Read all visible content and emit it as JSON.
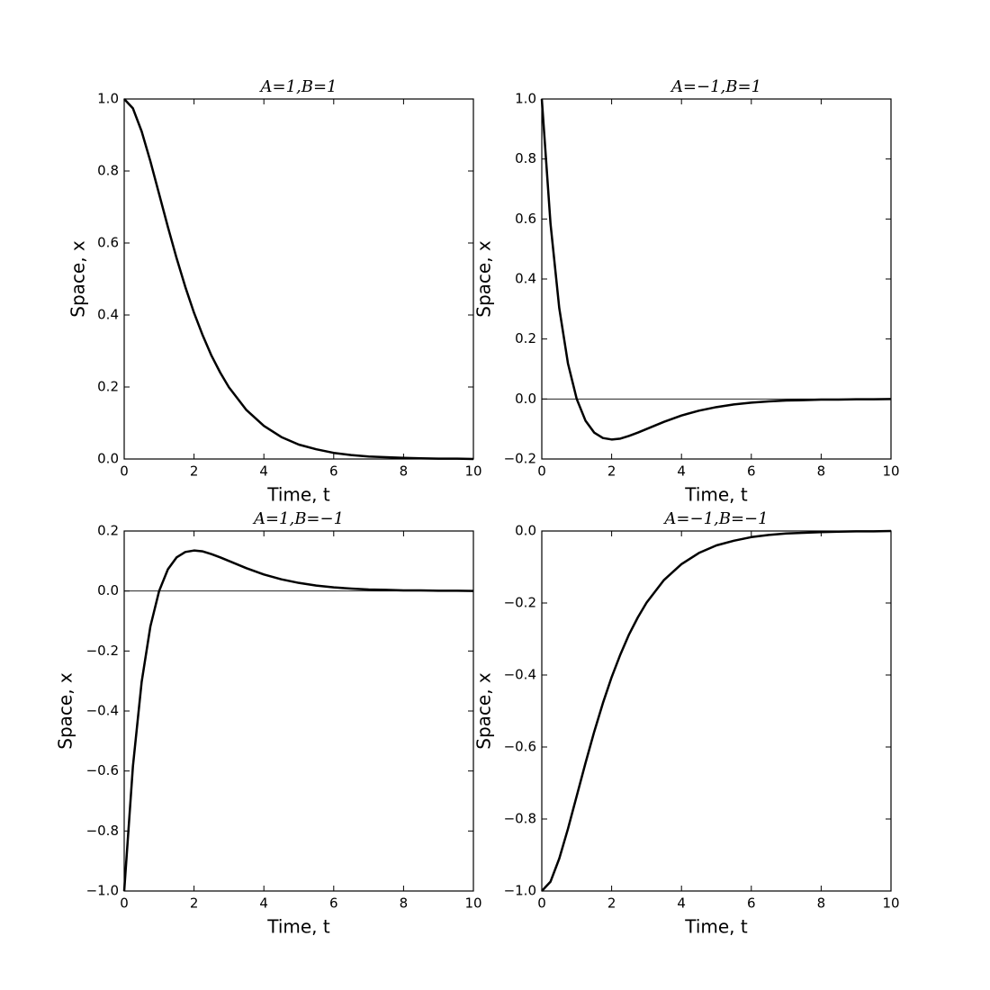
{
  "chart_data": [
    {
      "type": "line",
      "title": "A=1,B=1",
      "xlabel": "Time, t",
      "ylabel": "Space, x",
      "color": "#000000",
      "x": [
        0,
        0.25,
        0.5,
        0.75,
        1,
        1.25,
        1.5,
        1.75,
        2,
        2.25,
        2.5,
        2.75,
        3,
        3.5,
        4,
        4.5,
        5,
        5.5,
        6,
        6.5,
        7,
        7.5,
        8,
        8.5,
        9,
        9.5,
        10
      ],
      "values": [
        1,
        0.974,
        0.91,
        0.827,
        0.736,
        0.645,
        0.558,
        0.478,
        0.406,
        0.343,
        0.287,
        0.24,
        0.199,
        0.136,
        0.092,
        0.061,
        0.04,
        0.027,
        0.017,
        0.011,
        0.007,
        0.005,
        0.003,
        0.002,
        0.001,
        0.001,
        0
      ],
      "xlim": [
        0,
        10
      ],
      "xticks": [
        0,
        2,
        4,
        6,
        8,
        10
      ],
      "ylim": [
        0,
        1
      ],
      "yticks": [
        {
          "value": 0,
          "label": "0.0"
        },
        0.2,
        0.4,
        0.6,
        0.8,
        {
          "value": 1,
          "label": "1.0"
        }
      ]
    },
    {
      "type": "line",
      "title": "A=−1,B=1",
      "xlabel": "Time, t",
      "ylabel": "Space, x",
      "color": "#000000",
      "axhline": 0,
      "x": [
        0,
        0.25,
        0.5,
        0.75,
        1,
        1.25,
        1.5,
        1.75,
        2,
        2.25,
        2.5,
        2.75,
        3,
        3.5,
        4,
        4.5,
        5,
        5.5,
        6,
        6.5,
        7,
        7.5,
        8,
        8.5,
        9,
        9.5,
        10
      ],
      "values": [
        1,
        0.584,
        0.303,
        0.118,
        0,
        -0.072,
        -0.112,
        -0.13,
        -0.135,
        -0.132,
        -0.123,
        -0.112,
        -0.1,
        -0.076,
        -0.055,
        -0.039,
        -0.027,
        -0.018,
        -0.012,
        -0.008,
        -0.005,
        -0.004,
        -0.002,
        -0.002,
        -0.001,
        -0.001,
        0
      ],
      "xlim": [
        0,
        10
      ],
      "xticks": [
        0,
        2,
        4,
        6,
        8,
        10
      ],
      "ylim": [
        -0.2,
        1
      ],
      "yticks": [
        {
          "value": -0.2,
          "label": "−0.2"
        },
        {
          "value": 0,
          "label": "0.0"
        },
        0.2,
        0.4,
        0.6,
        0.8,
        {
          "value": 1,
          "label": "1.0"
        }
      ]
    },
    {
      "type": "line",
      "title": "A=1,B=−1",
      "xlabel": "Time, t",
      "ylabel": "Space, x",
      "color": "#000000",
      "axhline": 0,
      "x": [
        0,
        0.25,
        0.5,
        0.75,
        1,
        1.25,
        1.5,
        1.75,
        2,
        2.25,
        2.5,
        2.75,
        3,
        3.5,
        4,
        4.5,
        5,
        5.5,
        6,
        6.5,
        7,
        7.5,
        8,
        8.5,
        9,
        9.5,
        10
      ],
      "values": [
        -1,
        -0.584,
        -0.303,
        -0.118,
        0,
        0.072,
        0.112,
        0.13,
        0.135,
        0.132,
        0.123,
        0.112,
        0.1,
        0.076,
        0.055,
        0.039,
        0.027,
        0.018,
        0.012,
        0.008,
        0.005,
        0.004,
        0.002,
        0.002,
        0.001,
        0.001,
        0
      ],
      "xlim": [
        0,
        10
      ],
      "xticks": [
        0,
        2,
        4,
        6,
        8,
        10
      ],
      "ylim": [
        -1,
        0.2
      ],
      "yticks": [
        {
          "value": -1,
          "label": "−1.0"
        },
        {
          "value": -0.8,
          "label": "−0.8"
        },
        {
          "value": -0.6,
          "label": "−0.6"
        },
        {
          "value": -0.4,
          "label": "−0.4"
        },
        {
          "value": -0.2,
          "label": "−0.2"
        },
        {
          "value": 0,
          "label": "0.0"
        },
        0.2
      ]
    },
    {
      "type": "line",
      "title": "A=−1,B=−1",
      "xlabel": "Time, t",
      "ylabel": "Space, x",
      "color": "#000000",
      "x": [
        0,
        0.25,
        0.5,
        0.75,
        1,
        1.25,
        1.5,
        1.75,
        2,
        2.25,
        2.5,
        2.75,
        3,
        3.5,
        4,
        4.5,
        5,
        5.5,
        6,
        6.5,
        7,
        7.5,
        8,
        8.5,
        9,
        9.5,
        10
      ],
      "values": [
        -1,
        -0.974,
        -0.91,
        -0.827,
        -0.736,
        -0.645,
        -0.558,
        -0.478,
        -0.406,
        -0.343,
        -0.287,
        -0.24,
        -0.199,
        -0.136,
        -0.092,
        -0.061,
        -0.04,
        -0.027,
        -0.017,
        -0.011,
        -0.007,
        -0.005,
        -0.003,
        -0.002,
        -0.001,
        -0.001,
        0
      ],
      "xlim": [
        0,
        10
      ],
      "xticks": [
        0,
        2,
        4,
        6,
        8,
        10
      ],
      "ylim": [
        -1,
        0
      ],
      "yticks": [
        {
          "value": -1,
          "label": "−1.0"
        },
        {
          "value": -0.8,
          "label": "−0.8"
        },
        {
          "value": -0.6,
          "label": "−0.6"
        },
        {
          "value": -0.4,
          "label": "−0.4"
        },
        {
          "value": -0.2,
          "label": "−0.2"
        },
        {
          "value": 0,
          "label": "0.0"
        }
      ]
    }
  ]
}
